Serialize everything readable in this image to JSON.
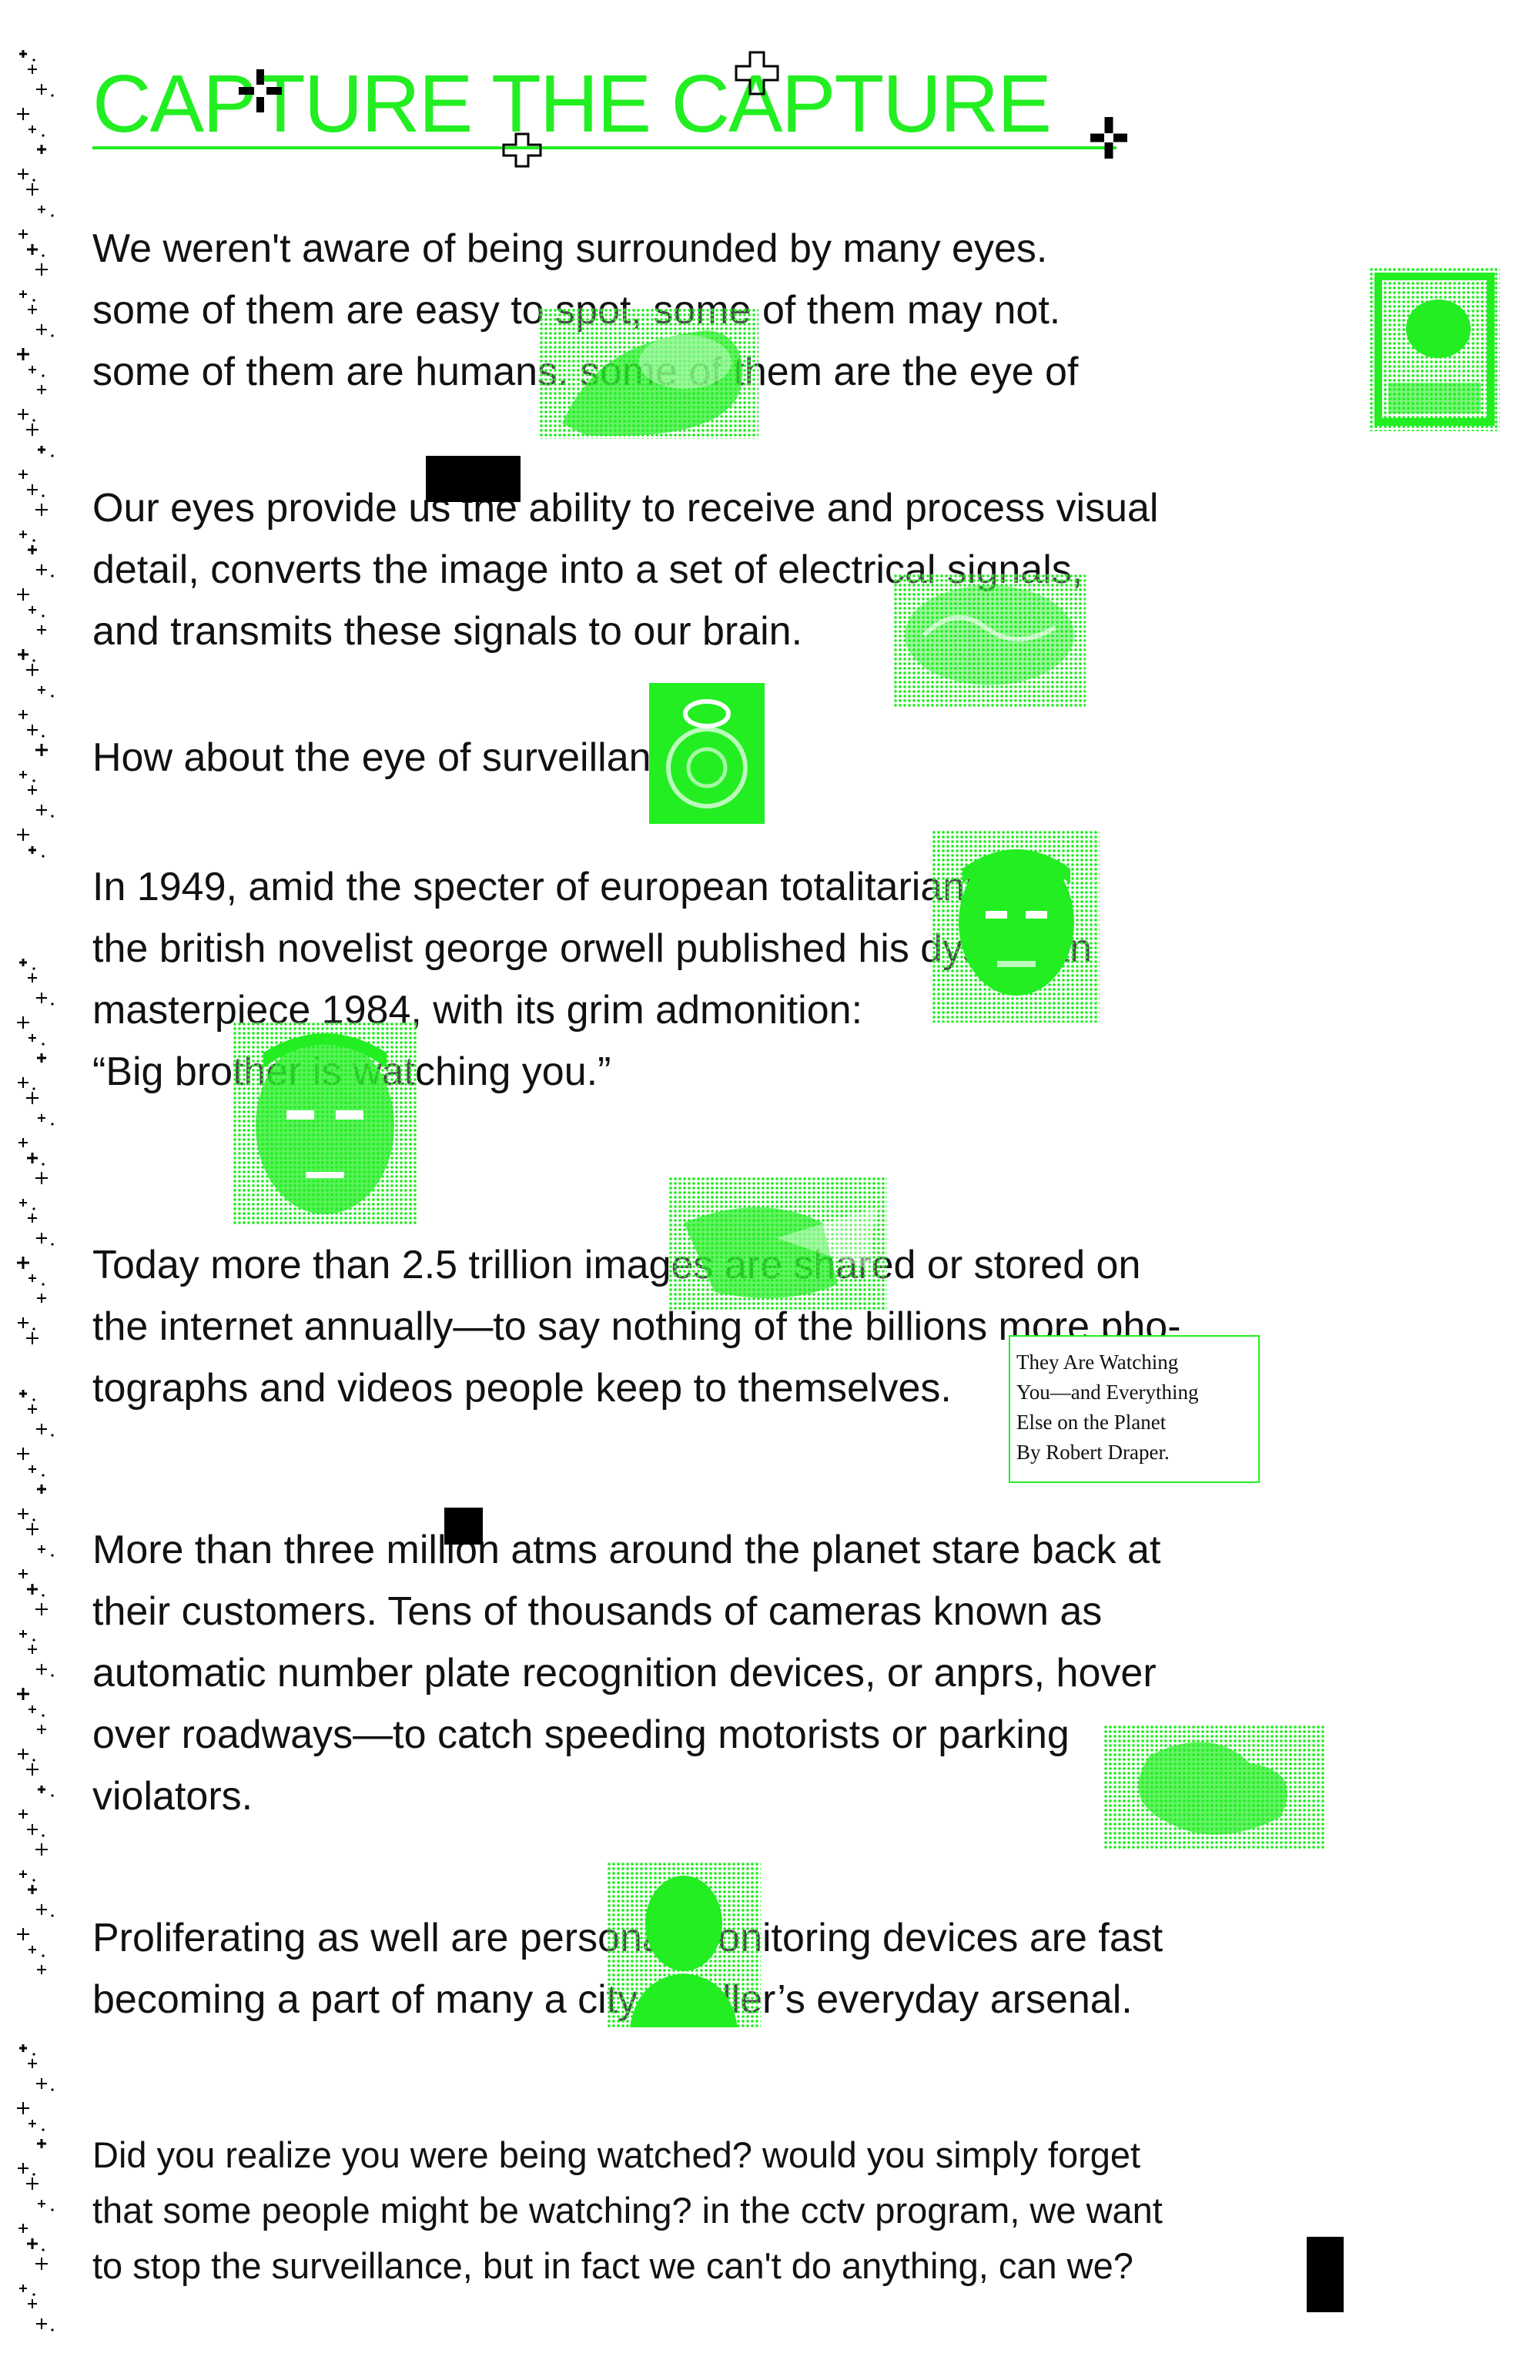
{
  "title": "CAPTURE THE CAPTURE",
  "paragraphs": [
    {
      "id": "p1",
      "lines": [
        "We weren't aware of being surrounded by many eyes.",
        "some of them are easy to spot, some of them may not.",
        "some of them are humans. some of them are the eye of"
      ]
    },
    {
      "id": "p2",
      "lines": [
        "Our eyes provide us the ability to receive and process visual",
        "detail, converts the image into a set of electrical signals,",
        "and transmits these signals to our brain."
      ]
    },
    {
      "id": "p3",
      "lines": [
        "How about the eye of surveillance?"
      ]
    },
    {
      "id": "p4",
      "lines": [
        "In 1949, amid the specter of european totalitarianism,",
        "the british novelist george orwell published his dystopian",
        "masterpiece 1984, with its grim admonition:",
        "“Big brother is watching you.”"
      ]
    },
    {
      "id": "p5",
      "lines": [
        "Today more than 2.5 trillion images are shared or stored on",
        "the internet annually—to say nothing of the billions more pho-",
        "tographs and videos people keep to themselves."
      ]
    },
    {
      "id": "p6",
      "lines": [
        "More than three million atms around the planet stare back at",
        "their customers. Tens of thousands of cameras known as",
        "automatic number plate recognition devices, or anprs, hover",
        "over roadways—to catch speeding motorists or parking",
        "violators."
      ]
    },
    {
      "id": "p7",
      "lines": [
        "Proliferating as well are personal monitoring devices are fast",
        "becoming a part of many a city dweller’s everyday arsenal."
      ]
    },
    {
      "id": "p8",
      "lines": [
        "Did you realize you were being watched? would you simply forget",
        "that some people might be watching? in the cctv program, we want",
        "to stop the surveillance, but in fact we can't do anything, can we?"
      ]
    }
  ],
  "citation": {
    "lines": [
      "They Are Watching",
      "You—and Everything",
      "Else on the Planet",
      "By Robert Draper."
    ]
  },
  "colors": {
    "accent": "#22ee22",
    "text": "#111111",
    "background": "#ffffff"
  },
  "images": [
    "halftone-hand-image",
    "halftone-cctv-camera-image",
    "halftone-brain-image",
    "halftone-dome-camera-image",
    "halftone-orwell-portrait-image",
    "halftone-big-brother-face-image",
    "halftone-photo-image",
    "halftone-atm-image",
    "halftone-person-image"
  ]
}
